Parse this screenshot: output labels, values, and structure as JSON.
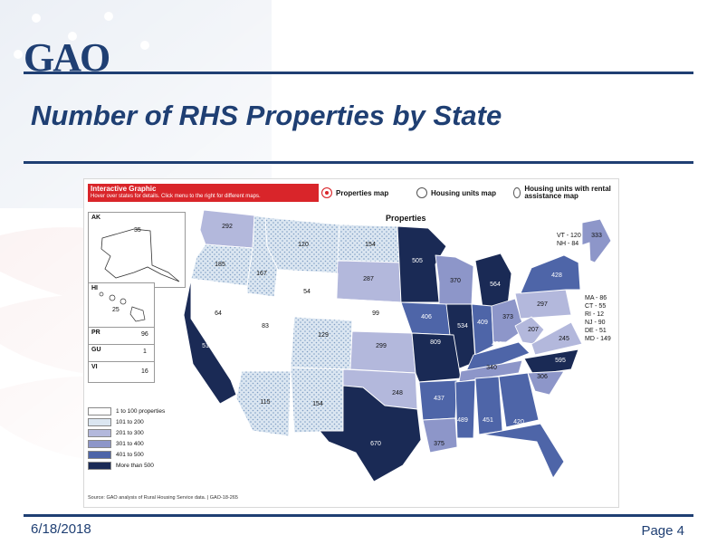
{
  "header": {
    "logo": "GAO",
    "title": "Number of RHS Properties by State"
  },
  "footer": {
    "date": "6/18/2018",
    "page": "Page 4"
  },
  "graphic": {
    "banner_title": "Interactive Graphic",
    "banner_subtitle": "Hover over states for details. Click menu to the right for different maps.",
    "tabs": [
      {
        "label": "Properties map",
        "selected": true
      },
      {
        "label": "Housing units map",
        "selected": false
      },
      {
        "label": "Housing units with rental assistance map",
        "selected": false
      }
    ],
    "map_title": "Properties",
    "insets": {
      "ak": {
        "label": "AK",
        "value": "35"
      },
      "hi": {
        "label": "HI",
        "value": "25"
      },
      "pr": {
        "label": "PR",
        "value": "96"
      },
      "gu": {
        "label": "GU",
        "value": "1"
      },
      "vi": {
        "label": "VI",
        "value": "16"
      }
    },
    "legend": [
      {
        "label": "1 to 100 properties",
        "color": "#ffffff"
      },
      {
        "label": "101 to 200",
        "color": "#dbe6f1"
      },
      {
        "label": "201 to 300",
        "color": "#b3b8dc"
      },
      {
        "label": "301 to 400",
        "color": "#8d96c9"
      },
      {
        "label": "401 to 500",
        "color": "#4e65a8"
      },
      {
        "label": "More than 500",
        "color": "#1a2a55"
      }
    ],
    "source": "Source: GAO analysis of Rural Housing Service data.  |  GAO-18-265",
    "ne_notes": [
      "VT - 120",
      "NH - 84"
    ],
    "ma_notes": [
      "MA - 86",
      "CT - 55",
      "RI - 12",
      "NJ - 90",
      "DE - 51",
      "MD - 149"
    ],
    "state_values": {
      "WA": "292",
      "OR": "185",
      "ID": "167",
      "MT": "120",
      "ND": "154",
      "SD": "287",
      "MN": "505",
      "WI": "370",
      "MI": "564",
      "ME": "333",
      "WY": "54",
      "NE": "99",
      "IA": "406",
      "IL": "534",
      "IN": "409",
      "OH": "373",
      "PA": "297",
      "NY": "428",
      "NV": "64",
      "UT": "83",
      "CO": "129",
      "KS": "299",
      "MO": "809",
      "KY": "431",
      "WV": "207",
      "VA": "245",
      "CA": "515",
      "AZ": "115",
      "NM": "154",
      "OK": "248",
      "AR": "437",
      "TN": "340",
      "NC": "595",
      "SC": "306",
      "TX": "670",
      "LA": "375",
      "MS": "489",
      "AL": "451",
      "GA": "420",
      "FL": "414"
    }
  }
}
